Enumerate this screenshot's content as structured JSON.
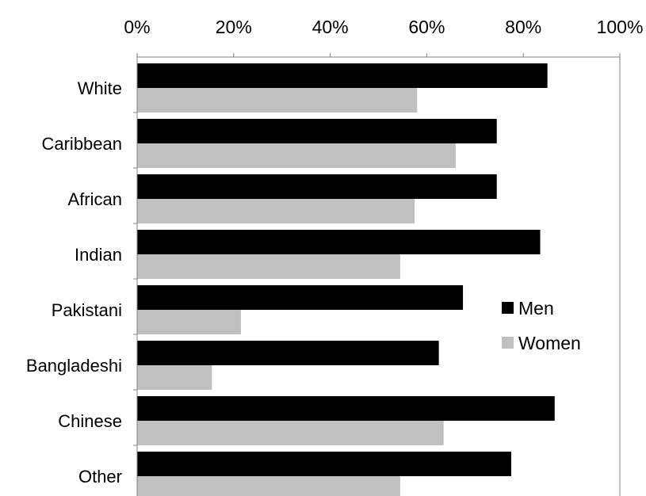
{
  "chart_data": {
    "type": "bar",
    "orientation": "horizontal",
    "categories": [
      "White",
      "Caribbean",
      "African",
      "Indian",
      "Pakistani",
      "Bangladeshi",
      "Chinese",
      "Other"
    ],
    "series": [
      {
        "name": "Men",
        "color": "#000000",
        "values": [
          85,
          74.5,
          74.5,
          83.5,
          67.5,
          62.5,
          86.5,
          77.5
        ]
      },
      {
        "name": "Women",
        "color": "#c0c0c0",
        "values": [
          58,
          66,
          57.5,
          54.5,
          21.5,
          15.5,
          63.5,
          54.5
        ]
      }
    ],
    "xlim": [
      0,
      100
    ],
    "x_ticks": [
      "0%",
      "20%",
      "40%",
      "60%",
      "80%",
      "100%"
    ],
    "x_axis_position": "top",
    "grid": false,
    "legend_position": "right",
    "title": "",
    "xlabel": "",
    "ylabel": ""
  }
}
